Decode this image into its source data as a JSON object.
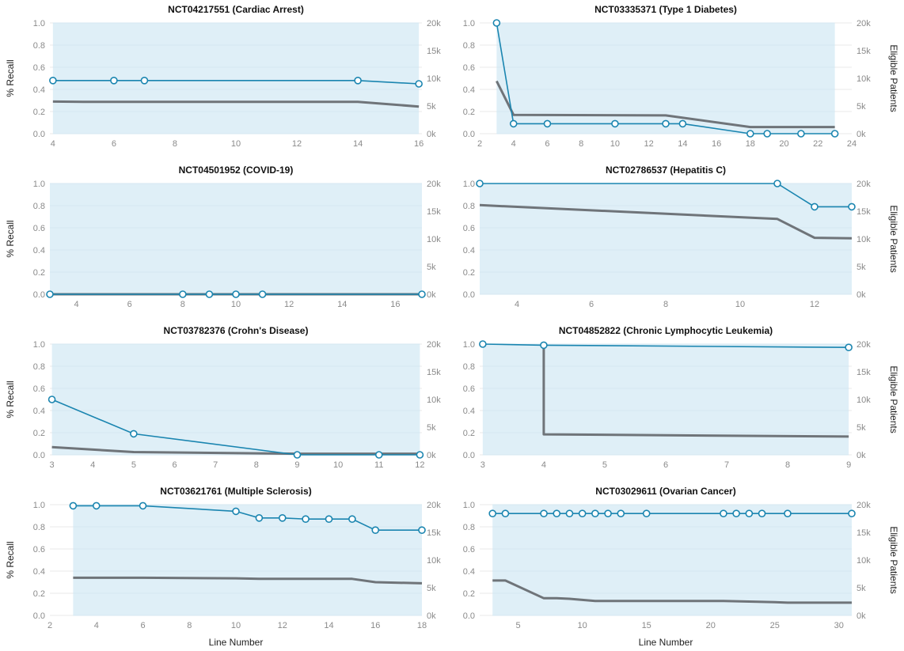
{
  "figure": {
    "left_ylabel": "% Recall",
    "right_ylabel": "Eligible Patients",
    "xlabel": "Line Number",
    "colors": {
      "recall": "#1a85b0",
      "area": "#dfeff7",
      "patients": "#6f7479",
      "grid": "#e8e8e8",
      "tick": "#8a8a8a"
    }
  },
  "chart_data": [
    {
      "type": "line",
      "title": "NCT04217551 (Cardiac Arrest)",
      "xlim": [
        3.9,
        16.1
      ],
      "xticks": [
        "4",
        "6",
        "8",
        "10",
        "12",
        "14",
        "16"
      ],
      "ylim": [
        0,
        1.0
      ],
      "yticks": [
        "0.0",
        "0.2",
        "0.4",
        "0.6",
        "0.8",
        "1.0"
      ],
      "y2lim": [
        0,
        20000
      ],
      "y2ticks": [
        "0k",
        "5k",
        "10k",
        "15k",
        "20k"
      ],
      "recall": {
        "x": [
          4,
          6,
          7,
          14,
          16
        ],
        "y": [
          0.48,
          0.48,
          0.48,
          0.48,
          0.45
        ]
      },
      "patients": {
        "x": [
          4,
          5,
          14,
          16
        ],
        "y": [
          5800,
          5750,
          5750,
          4900
        ]
      },
      "area": [
        4,
        16
      ]
    },
    {
      "type": "line",
      "title": "NCT03335371 (Type 1 Diabetes)",
      "xlim": [
        2,
        24
      ],
      "xticks": [
        "2",
        "4",
        "6",
        "8",
        "10",
        "12",
        "14",
        "16",
        "18",
        "20",
        "22",
        "24"
      ],
      "ylim": [
        0,
        1.0
      ],
      "yticks": [
        "0.0",
        "0.2",
        "0.4",
        "0.6",
        "0.8",
        "1.0"
      ],
      "y2lim": [
        0,
        20000
      ],
      "y2ticks": [
        "0k",
        "5k",
        "10k",
        "15k",
        "20k"
      ],
      "recall": {
        "x": [
          3,
          4,
          6,
          10,
          13,
          14,
          18,
          19,
          21,
          23
        ],
        "y": [
          1.0,
          0.09,
          0.09,
          0.09,
          0.09,
          0.09,
          0.0,
          0.0,
          0.0,
          0.0
        ]
      },
      "patients": {
        "x": [
          3,
          4,
          13,
          18,
          23
        ],
        "y": [
          9500,
          3400,
          3300,
          1200,
          1200
        ]
      },
      "area": [
        3,
        23
      ]
    },
    {
      "type": "line",
      "title": "NCT04501952 (COVID-19)",
      "xlim": [
        3,
        17
      ],
      "xticks": [
        "4",
        "6",
        "8",
        "10",
        "12",
        "14",
        "16"
      ],
      "ylim": [
        0,
        1.0
      ],
      "yticks": [
        "0.0",
        "0.2",
        "0.4",
        "0.6",
        "0.8",
        "1.0"
      ],
      "y2lim": [
        0,
        20000
      ],
      "y2ticks": [
        "0k",
        "5k",
        "10k",
        "15k",
        "20k"
      ],
      "recall": {
        "x": [
          3,
          8,
          9,
          10,
          11,
          17
        ],
        "y": [
          0,
          0,
          0,
          0,
          0,
          0
        ]
      },
      "patients": {
        "x": [
          3,
          17
        ],
        "y": [
          0,
          0
        ]
      },
      "area": [
        3,
        17
      ]
    },
    {
      "type": "line",
      "title": "NCT02786537 (Hepatitis C)",
      "xlim": [
        3,
        13
      ],
      "xticks": [
        "4",
        "6",
        "8",
        "10",
        "12"
      ],
      "ylim": [
        0,
        1.0
      ],
      "yticks": [
        "0.0",
        "0.2",
        "0.4",
        "0.6",
        "0.8",
        "1.0"
      ],
      "y2lim": [
        0,
        20000
      ],
      "y2ticks": [
        "0k",
        "5k",
        "10k",
        "15k",
        "20k"
      ],
      "recall": {
        "x": [
          3,
          11,
          12,
          13
        ],
        "y": [
          1.0,
          1.0,
          0.79,
          0.79
        ]
      },
      "patients": {
        "x": [
          3,
          11,
          12,
          13
        ],
        "y": [
          16100,
          13600,
          10200,
          10100
        ]
      },
      "area": [
        3,
        13
      ]
    },
    {
      "type": "line",
      "title": "NCT03782376 (Crohn's Disease)",
      "xlim": [
        2.95,
        12.05
      ],
      "xticks": [
        "3",
        "4",
        "5",
        "6",
        "7",
        "8",
        "9",
        "10",
        "11",
        "12"
      ],
      "ylim": [
        0,
        1.0
      ],
      "yticks": [
        "0.0",
        "0.2",
        "0.4",
        "0.6",
        "0.8",
        "1.0"
      ],
      "y2lim": [
        0,
        20000
      ],
      "y2ticks": [
        "0k",
        "5k",
        "10k",
        "15k",
        "20k"
      ],
      "recall": {
        "x": [
          3,
          5,
          9,
          11,
          12
        ],
        "y": [
          0.5,
          0.19,
          0.0,
          0.0,
          0.0
        ]
      },
      "patients": {
        "x": [
          3,
          5,
          9,
          12
        ],
        "y": [
          1400,
          500,
          200,
          200
        ]
      },
      "area": [
        3,
        12
      ]
    },
    {
      "type": "line",
      "title": "NCT04852822 (Chronic Lymphocytic Leukemia)",
      "xlim": [
        2.95,
        9.05
      ],
      "xticks": [
        "3",
        "4",
        "5",
        "6",
        "7",
        "8",
        "9"
      ],
      "ylim": [
        0,
        1.0
      ],
      "yticks": [
        "0.0",
        "0.2",
        "0.4",
        "0.6",
        "0.8",
        "1.0"
      ],
      "y2lim": [
        0,
        20000
      ],
      "y2ticks": [
        "0k",
        "5k",
        "10k",
        "15k",
        "20k"
      ],
      "recall": {
        "x": [
          3,
          4,
          9
        ],
        "y": [
          1.0,
          0.99,
          0.97
        ]
      },
      "patients": {
        "x": [
          4,
          4,
          9
        ],
        "y": [
          19800,
          3700,
          3300
        ]
      },
      "area": [
        3,
        9
      ]
    },
    {
      "type": "line",
      "title": "NCT03621761 (Multiple Sclerosis)",
      "xlim": [
        2,
        18
      ],
      "xticks": [
        "2",
        "4",
        "6",
        "8",
        "10",
        "12",
        "14",
        "16",
        "18"
      ],
      "ylim": [
        0,
        1.0
      ],
      "yticks": [
        "0.0",
        "0.2",
        "0.4",
        "0.6",
        "0.8",
        "1.0"
      ],
      "y2lim": [
        0,
        20000
      ],
      "y2ticks": [
        "0k",
        "5k",
        "10k",
        "15k",
        "20k"
      ],
      "recall": {
        "x": [
          3,
          4,
          6,
          10,
          11,
          12,
          13,
          14,
          15,
          16,
          18
        ],
        "y": [
          0.99,
          0.99,
          0.99,
          0.94,
          0.88,
          0.88,
          0.87,
          0.87,
          0.87,
          0.77,
          0.77
        ]
      },
      "patients": {
        "x": [
          3,
          6,
          10,
          11,
          15,
          16,
          18
        ],
        "y": [
          6800,
          6800,
          6700,
          6600,
          6600,
          6000,
          5800
        ]
      },
      "area": [
        3,
        18
      ]
    },
    {
      "type": "line",
      "title": "NCT03029611 (Ovarian Cancer)",
      "xlim": [
        2,
        31
      ],
      "xticks": [
        "5",
        "10",
        "15",
        "20",
        "25",
        "30"
      ],
      "ylim": [
        0,
        1.0
      ],
      "yticks": [
        "0.0",
        "0.2",
        "0.4",
        "0.6",
        "0.8",
        "1.0"
      ],
      "y2lim": [
        0,
        20000
      ],
      "y2ticks": [
        "0k",
        "5k",
        "10k",
        "15k",
        "20k"
      ],
      "recall": {
        "x": [
          3,
          4,
          7,
          8,
          9,
          10,
          11,
          12,
          13,
          15,
          21,
          22,
          23,
          24,
          26,
          31
        ],
        "y": [
          0.92,
          0.92,
          0.92,
          0.92,
          0.92,
          0.92,
          0.92,
          0.92,
          0.92,
          0.92,
          0.92,
          0.92,
          0.92,
          0.92,
          0.92,
          0.92
        ]
      },
      "patients": {
        "x": [
          3,
          4,
          7,
          8,
          9,
          10,
          11,
          21,
          25,
          26,
          31
        ],
        "y": [
          6300,
          6300,
          3100,
          3100,
          3000,
          2800,
          2600,
          2600,
          2400,
          2300,
          2300
        ]
      },
      "area": [
        3,
        31
      ]
    }
  ]
}
